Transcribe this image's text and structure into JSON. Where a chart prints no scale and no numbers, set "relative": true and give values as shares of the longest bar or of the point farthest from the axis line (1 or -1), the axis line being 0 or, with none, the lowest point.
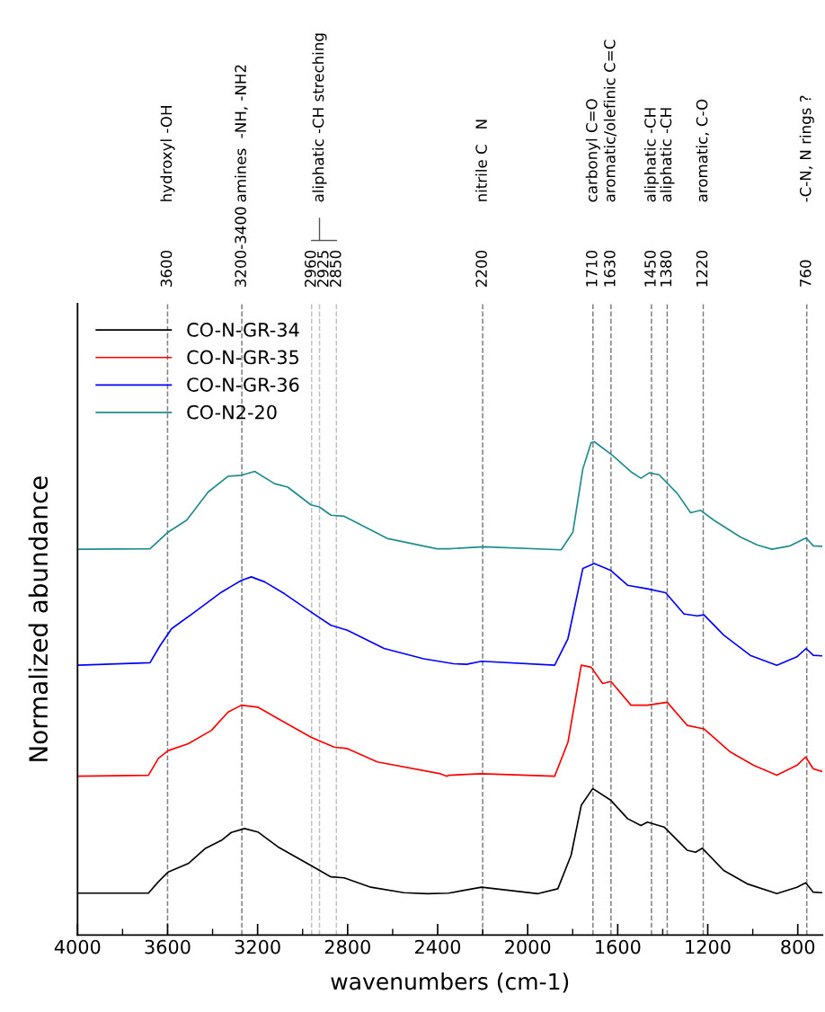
{
  "chart_data": {
    "type": "line",
    "relative": true,
    "xlabel": "wavenumbers (cm-1)",
    "ylabel": "Normalized abundance",
    "xlim": [
      4000,
      690
    ],
    "xticks": [
      4000,
      {
        "value": 3800,
        "label": null
      },
      3600,
      {
        "value": 3400,
        "label": null
      },
      3200,
      {
        "value": 3000,
        "label": null
      },
      2800,
      {
        "value": 2600,
        "label": null
      },
      2400,
      {
        "value": 2200,
        "label": null
      },
      2000,
      {
        "value": 1800,
        "label": null
      },
      1600,
      {
        "value": 1400,
        "label": null
      },
      1200,
      {
        "value": 1000,
        "label": null
      },
      800
    ],
    "legend": "top left",
    "grid": false,
    "line_style": "solid",
    "marker": "none",
    "series": [
      {
        "name": "CO-N-GR-34",
        "color": "#000000",
        "x": [
          3995,
          3685,
          3641,
          3597,
          3508,
          3434,
          3361,
          3317,
          3258,
          3199,
          3110,
          2963,
          2874,
          2815,
          2697,
          2550,
          2447,
          2352,
          2205,
          1954,
          1866,
          1807,
          1762,
          1711,
          1630,
          1556,
          1497,
          1468,
          1394,
          1291,
          1254,
          1224,
          1129,
          1025,
          893,
          804,
          765,
          731,
          694
        ],
        "values": [
          0.085,
          0.085,
          0.108,
          0.128,
          0.145,
          0.175,
          0.192,
          0.208,
          0.216,
          0.209,
          0.179,
          0.141,
          0.118,
          0.116,
          0.097,
          0.086,
          0.084,
          0.085,
          0.097,
          0.084,
          0.094,
          0.162,
          0.263,
          0.297,
          0.273,
          0.236,
          0.222,
          0.229,
          0.219,
          0.172,
          0.168,
          0.176,
          0.131,
          0.104,
          0.084,
          0.097,
          0.106,
          0.087,
          0.086
        ]
      },
      {
        "name": "CO-N-GR-35",
        "color": "#ff0000",
        "x": [
          3995,
          3685,
          3641,
          3597,
          3508,
          3405,
          3331,
          3272,
          3199,
          3110,
          2963,
          2860,
          2801,
          2668,
          2388,
          2358,
          2352,
          2205,
          1880,
          1821,
          1762,
          1718,
          1667,
          1630,
          1541,
          1468,
          1380,
          1291,
          1217,
          1099,
          996,
          893,
          804,
          765,
          731,
          694
        ],
        "values": [
          0.322,
          0.324,
          0.358,
          0.374,
          0.388,
          0.415,
          0.452,
          0.466,
          0.462,
          0.439,
          0.401,
          0.381,
          0.378,
          0.351,
          0.327,
          0.322,
          0.324,
          0.327,
          0.322,
          0.391,
          0.547,
          0.543,
          0.51,
          0.514,
          0.466,
          0.466,
          0.472,
          0.425,
          0.418,
          0.371,
          0.344,
          0.324,
          0.344,
          0.361,
          0.337,
          0.332
        ]
      },
      {
        "name": "CO-N-GR-36",
        "color": "#0000ff",
        "x": [
          3995,
          3678,
          3633,
          3582,
          3479,
          3361,
          3272,
          3228,
          3169,
          3081,
          2963,
          2874,
          2801,
          2638,
          2462,
          2329,
          2271,
          2205,
          1880,
          1821,
          1755,
          1704,
          1630,
          1556,
          1468,
          1387,
          1306,
          1247,
          1217,
          1129,
          1011,
          893,
          804,
          763,
          731,
          694
        ],
        "values": [
          0.547,
          0.552,
          0.587,
          0.621,
          0.655,
          0.695,
          0.719,
          0.726,
          0.716,
          0.692,
          0.655,
          0.628,
          0.618,
          0.581,
          0.56,
          0.55,
          0.549,
          0.555,
          0.547,
          0.601,
          0.743,
          0.753,
          0.739,
          0.709,
          0.702,
          0.694,
          0.651,
          0.647,
          0.649,
          0.608,
          0.567,
          0.547,
          0.564,
          0.581,
          0.567,
          0.566
        ]
      },
      {
        "name": "CO-N2-20",
        "color": "#1e8c8c",
        "x": [
          3995,
          3678,
          3597,
          3515,
          3420,
          3331,
          3272,
          3213,
          3125,
          3066,
          2963,
          2926,
          2874,
          2815,
          2624,
          2403,
          2352,
          2197,
          1851,
          1799,
          1755,
          1718,
          1704,
          1622,
          1541,
          1497,
          1460,
          1416,
          1335,
          1276,
          1232,
          1173,
          1055,
          981,
          915,
          834,
          763,
          731,
          694
        ],
        "values": [
          0.782,
          0.783,
          0.817,
          0.841,
          0.898,
          0.93,
          0.932,
          0.94,
          0.915,
          0.908,
          0.872,
          0.868,
          0.851,
          0.849,
          0.804,
          0.783,
          0.783,
          0.787,
          0.781,
          0.817,
          0.945,
          0.998,
          1.0,
          0.972,
          0.939,
          0.926,
          0.937,
          0.933,
          0.895,
          0.856,
          0.861,
          0.841,
          0.807,
          0.791,
          0.782,
          0.789,
          0.805,
          0.789,
          0.788
        ]
      }
    ],
    "ref_lines": [
      {
        "axis": "x",
        "value": 3600,
        "label": "3600",
        "color": "#808080",
        "line_style": "dashed"
      },
      {
        "axis": "x",
        "value": 3270,
        "color": "#808080",
        "line_style": "dashed"
      },
      {
        "axis": "x",
        "value": 2960,
        "label": "2960",
        "color": "#c0c0c0",
        "line_style": "dashed"
      },
      {
        "axis": "x",
        "value": 2925,
        "label": "2925",
        "color": "#c0c0c0",
        "line_style": "dashed"
      },
      {
        "axis": "x",
        "value": 2850,
        "label": "2850",
        "color": "#c0c0c0",
        "line_style": "dashed"
      },
      {
        "axis": "x",
        "value": 2200,
        "label": "2200",
        "color": "#808080",
        "line_style": "dashed"
      },
      {
        "axis": "x",
        "value": 1710,
        "label": "1710",
        "color": "#808080",
        "line_style": "dashed"
      },
      {
        "axis": "x",
        "value": 1630,
        "label": "1630",
        "color": "#808080",
        "line_style": "dashed"
      },
      {
        "axis": "x",
        "value": 1450,
        "label": "1450",
        "color": "#808080",
        "line_style": "dashed"
      },
      {
        "axis": "x",
        "value": 1380,
        "label": "1380",
        "color": "#808080",
        "line_style": "dashed"
      },
      {
        "axis": "x",
        "value": 1220,
        "label": "1220",
        "color": "#808080",
        "line_style": "dashed"
      },
      {
        "axis": "x",
        "value": 760,
        "label": "760",
        "color": "#808080",
        "line_style": "dashed"
      }
    ],
    "annotations": [
      "3200-3400",
      "hydroxyl -OH",
      "amines  -NH, -NH2",
      "aliphatic -CH streching",
      "nitrile C   N",
      "carbonyl C=O",
      "aromatic/olefinic C=C",
      "aliphatic -CH",
      "aliphatic -CH",
      "aromatic, C-O",
      "-C-N, N rings ?"
    ]
  }
}
